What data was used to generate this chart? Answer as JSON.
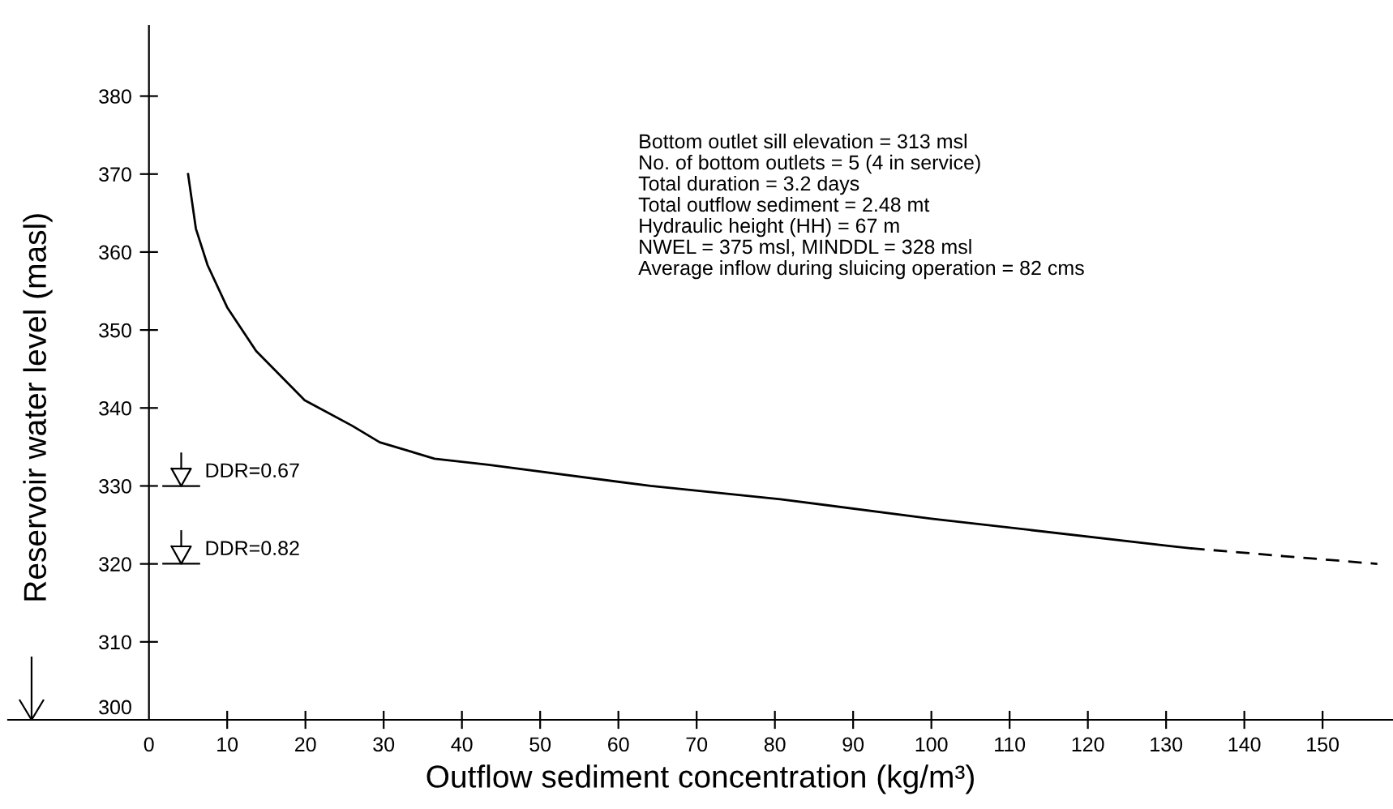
{
  "chart_data": {
    "type": "line",
    "xlabel": "Outflow sediment concentration (kg/m³)",
    "ylabel": "Reservoir water level (masl)",
    "xlim": [
      -18,
      159
    ],
    "ylim": [
      300,
      389
    ],
    "xticks": [
      0,
      10,
      20,
      30,
      40,
      50,
      60,
      70,
      80,
      90,
      100,
      110,
      120,
      130,
      140,
      150
    ],
    "yticks": [
      300,
      310,
      320,
      330,
      340,
      350,
      360,
      370,
      380
    ],
    "grid": false,
    "marker": "none",
    "series": [
      {
        "color": "#000000",
        "line_style": "solid",
        "x": [
          5,
          6,
          7.5,
          10,
          13.7,
          19.9,
          26,
          29.5,
          36.5,
          43.4,
          64.1,
          80.7,
          100,
          130.5,
          133.2
        ],
        "values": [
          370,
          363,
          358.3,
          352.9,
          347.3,
          341,
          337.7,
          335.6,
          333.5,
          332.7,
          330,
          328.3,
          325.8,
          322.3,
          322
        ]
      },
      {
        "color": "#000000",
        "line_style": "dashed",
        "x": [
          133.2,
          145,
          157
        ],
        "values": [
          322,
          321,
          320
        ]
      }
    ],
    "annotations": [
      "DDR=0.67",
      "DDR=0.82",
      "Bottom outlet sill elevation = 313 msl\nNo. of bottom outlets = 5 (4 in service)\nTotal duration = 3.2 days\nTotal outflow sediment = 2.48 mt\nHydraulic height (HH) = 67 m\nNWEL = 375 msl, MINDDL = 328 msl\nAverage inflow during sluicing operation = 82 cms"
    ]
  }
}
